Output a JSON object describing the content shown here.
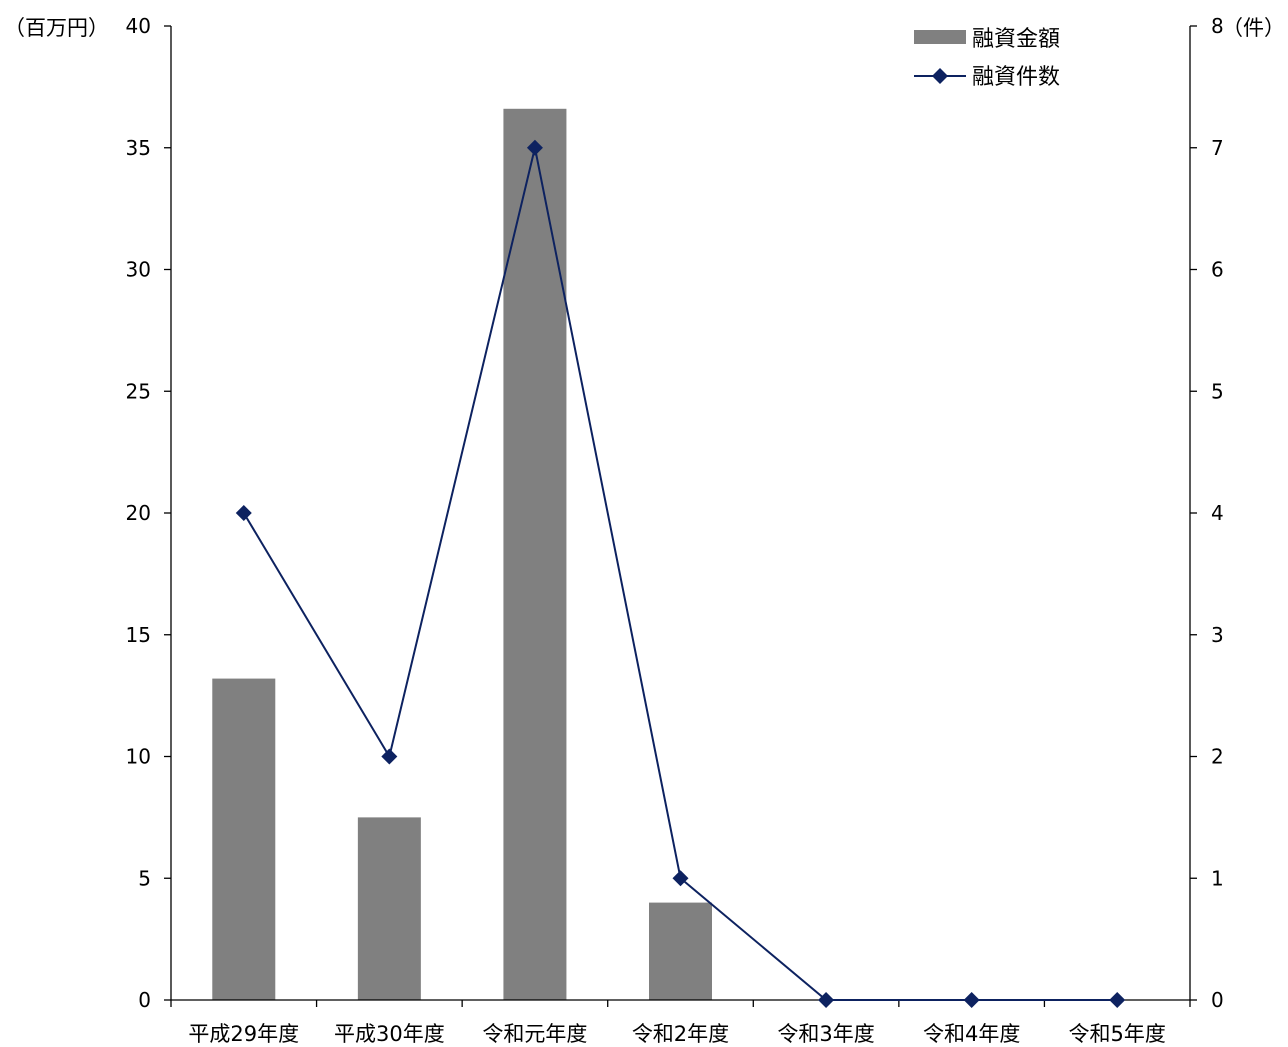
{
  "chart_data": {
    "type": "bar",
    "categories": [
      "平成29年度",
      "平成30年度",
      "令和元年度",
      "令和2年度",
      "令和3年度",
      "令和4年度",
      "令和5年度"
    ],
    "series": [
      {
        "name": "融資金額",
        "type": "bar",
        "axis": "left",
        "color": "#808080",
        "values": [
          13.2,
          7.5,
          36.6,
          4.0,
          0,
          0,
          0
        ]
      },
      {
        "name": "融資件数",
        "type": "line",
        "axis": "right",
        "color": "#0d2260",
        "marker": "diamond",
        "values": [
          4,
          2,
          7,
          1,
          0,
          0,
          0
        ]
      }
    ],
    "y_left": {
      "unit": "（百万円）",
      "ylim": [
        0,
        40
      ],
      "ticks": [
        0,
        5,
        10,
        15,
        20,
        25,
        30,
        35,
        40
      ]
    },
    "y_right": {
      "unit": "（件）",
      "ylim": [
        0,
        8
      ],
      "ticks": [
        0,
        1,
        2,
        3,
        4,
        5,
        6,
        7,
        8
      ]
    },
    "legend_position": "top-right",
    "grid": false
  }
}
